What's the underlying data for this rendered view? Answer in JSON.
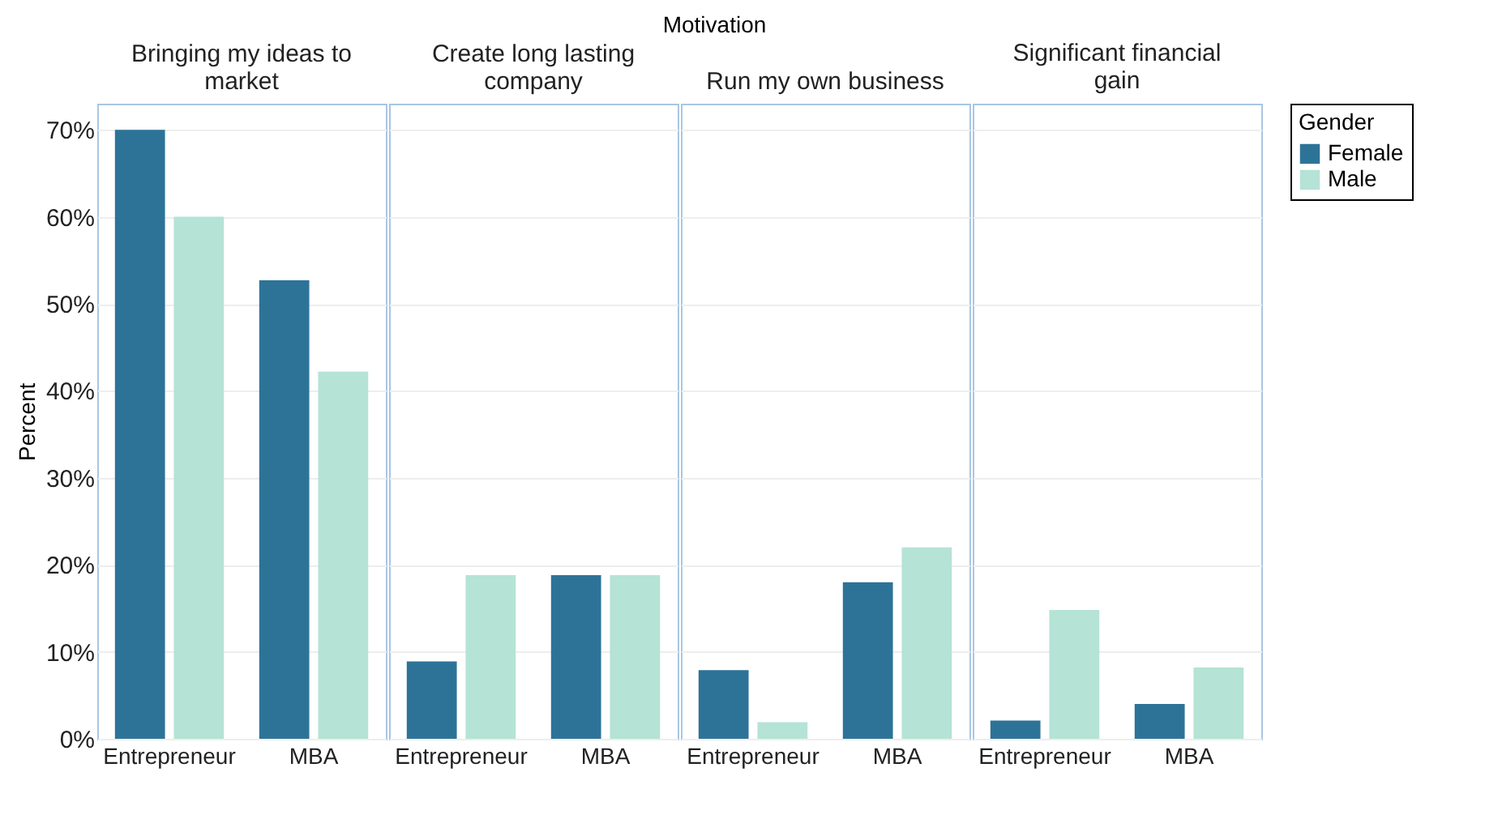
{
  "chart_data": [
    {
      "type": "bar",
      "title": "Bringing my ideas to market",
      "annotations": [
        "Motivation"
      ],
      "ylabel": "Percent",
      "grid": "y",
      "categories": [
        "Entrepreneur",
        "MBA"
      ],
      "ylim": [
        0,
        73
      ],
      "yticks": [
        {
          "value": 0,
          "label": "0%"
        },
        {
          "value": 10,
          "label": "10%"
        },
        {
          "value": 20,
          "label": "20%"
        },
        {
          "value": 30,
          "label": "30%"
        },
        {
          "value": 40,
          "label": "40%"
        },
        {
          "value": 50,
          "label": "50%"
        },
        {
          "value": 60,
          "label": "60%"
        },
        {
          "value": 70,
          "label": "70%"
        }
      ],
      "series": [
        {
          "color": "#2d7398",
          "values": [
            70.0,
            52.7
          ]
        },
        {
          "color": "#b5e3d5",
          "values": [
            60.0,
            42.2
          ]
        }
      ]
    },
    {
      "type": "bar",
      "title": "Create long lasting company",
      "grid": "y",
      "tick_labels": "x",
      "categories": [
        "Entrepreneur",
        "MBA"
      ],
      "ylim": [
        0,
        73
      ],
      "series": [
        {
          "color": "#2d7398",
          "values": [
            8.9,
            18.8
          ]
        },
        {
          "color": "#b5e3d5",
          "values": [
            18.8,
            18.8
          ]
        }
      ]
    },
    {
      "type": "bar",
      "title": "Run my own business",
      "grid": "y",
      "tick_labels": "x",
      "categories": [
        "Entrepreneur",
        "MBA"
      ],
      "ylim": [
        0,
        73
      ],
      "series": [
        {
          "color": "#2d7398",
          "values": [
            7.9,
            18.0
          ]
        },
        {
          "color": "#b5e3d5",
          "values": [
            1.9,
            22.0
          ]
        }
      ]
    },
    {
      "type": "bar",
      "title": "Significant financial gain",
      "legend_title": "Gender",
      "legend": "right",
      "grid": "y",
      "tick_labels": "x",
      "categories": [
        "Entrepreneur",
        "MBA"
      ],
      "ylim": [
        0,
        73
      ],
      "series": [
        {
          "name": "Female",
          "color": "#2d7398",
          "values": [
            2.1,
            4.0
          ]
        },
        {
          "name": "Male",
          "color": "#b5e3d5",
          "values": [
            14.8,
            8.2
          ]
        }
      ]
    }
  ]
}
